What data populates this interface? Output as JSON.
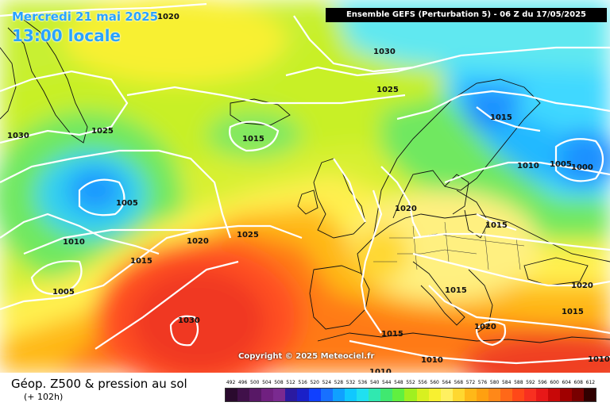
{
  "header": {
    "date": "Mercredi 21 mai 2025",
    "time": "13:00 locale",
    "run": "Ensemble GEFS  (Perturbation 5)  -  06 Z du 17/05/2025"
  },
  "map": {
    "isobar_labels": [
      "1020",
      "1030",
      "1025",
      "1025",
      "1030",
      "1015",
      "1005",
      "1010",
      "1015",
      "1015",
      "1005",
      "1000",
      "1020",
      "1020",
      "1025",
      "1015",
      "1015",
      "1010",
      "1005",
      "1030",
      "1015",
      "1020",
      "1015",
      "1020",
      "1010",
      "1010",
      "1010"
    ],
    "copyright": "Copyright © 2025 Meteociel.fr"
  },
  "footer": {
    "parameter": "Géop. Z500 & pression au sol",
    "lead_time": "(+ 102h)"
  },
  "legend": {
    "labels": [
      "492",
      "496",
      "500",
      "504",
      "508",
      "512",
      "516",
      "520",
      "524",
      "528",
      "532",
      "536",
      "540",
      "544",
      "548",
      "552",
      "556",
      "560",
      "564",
      "568",
      "572",
      "576",
      "580",
      "584",
      "588",
      "592",
      "596",
      "600",
      "604",
      "608",
      "612"
    ],
    "colors": [
      "#2a0a2e",
      "#40104a",
      "#581866",
      "#702080",
      "#7a2a90",
      "#2a1aa0",
      "#1a20c8",
      "#1040ff",
      "#1870ff",
      "#10a0ff",
      "#10c8ff",
      "#20e0f0",
      "#30e8b0",
      "#40e870",
      "#60f040",
      "#a0f020",
      "#d8f020",
      "#f8f030",
      "#fff060",
      "#ffd830",
      "#ffb818",
      "#ffa010",
      "#ff8818",
      "#ff6818",
      "#ff4818",
      "#f83020",
      "#e81818",
      "#c80808",
      "#a00000",
      "#780000",
      "#300000"
    ],
    "sea_color": "#000000"
  }
}
